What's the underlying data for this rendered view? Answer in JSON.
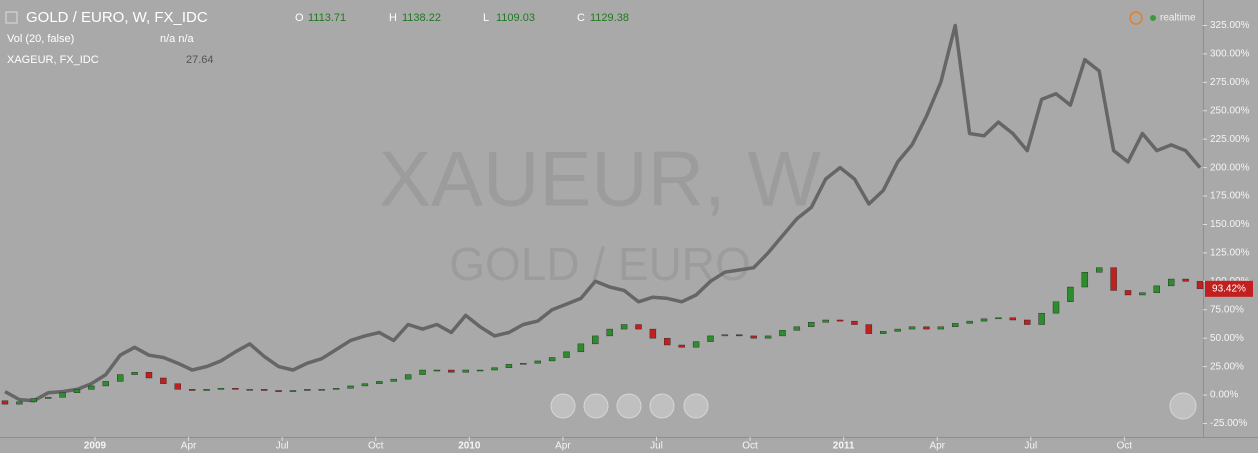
{
  "header": {
    "ohlc": [
      {
        "key": "O",
        "value": "1113.71"
      },
      {
        "key": "H",
        "value": "1138.22"
      },
      {
        "key": "L",
        "value": "1109.03"
      },
      {
        "key": "C",
        "value": "1129.38"
      }
    ],
    "volume_name": "Vol (20, false)",
    "volume_values": "n/a  n/a",
    "compare_value": "27.64",
    "status": "realtime",
    "watermark": "XAUEUR, W",
    "watermark_sub": "GOLD / EURO"
  },
  "chart_data": {
    "type": "candlestick",
    "x": [
      0,
      2,
      4,
      6,
      8,
      10,
      12,
      14,
      16,
      18,
      20,
      22,
      24,
      26,
      28,
      30,
      32,
      34,
      36,
      38,
      40,
      42,
      44,
      46,
      48,
      50,
      52,
      54,
      56,
      58,
      60,
      62,
      64,
      66,
      68,
      70,
      72,
      74,
      76,
      78,
      80,
      82,
      84,
      86,
      88,
      90,
      92,
      94,
      96,
      98,
      100,
      102,
      104,
      106,
      108,
      110,
      112,
      114,
      116,
      118,
      120,
      122,
      124,
      126,
      128,
      130,
      132,
      134,
      136,
      138,
      140,
      142,
      144,
      146,
      148,
      150,
      152,
      154,
      156,
      158,
      160,
      162,
      164,
      166
    ],
    "candles": {
      "name": "GOLD / EURO, W, FX_IDC",
      "up_color": "#2e8b2e",
      "down_color": "#c21f1f",
      "open": [
        -5,
        -8,
        -6,
        -3,
        -2,
        2,
        5,
        8,
        12,
        18,
        20,
        15,
        10,
        5,
        4,
        5,
        6,
        5,
        5,
        4,
        3,
        4,
        5,
        5,
        6,
        8,
        10,
        12,
        14,
        18,
        22,
        22,
        20,
        22,
        22,
        24,
        27,
        28,
        30,
        33,
        38,
        45,
        52,
        58,
        62,
        58,
        50,
        44,
        42,
        47,
        52,
        53,
        52,
        50,
        52,
        57,
        60,
        64,
        66,
        65,
        62,
        54,
        56,
        58,
        60,
        58,
        60,
        63,
        65,
        67,
        68,
        66,
        62,
        72,
        82,
        95,
        108,
        112,
        92,
        88,
        90,
        96,
        102,
        100
      ],
      "close": [
        -8,
        -6,
        -3,
        -2,
        2,
        5,
        8,
        12,
        18,
        20,
        15,
        10,
        5,
        4,
        5,
        6,
        5,
        5,
        4,
        3,
        4,
        5,
        5,
        6,
        8,
        10,
        12,
        14,
        18,
        22,
        22,
        20,
        22,
        22,
        24,
        27,
        28,
        30,
        33,
        38,
        45,
        52,
        58,
        62,
        58,
        50,
        44,
        42,
        47,
        52,
        53,
        52,
        50,
        52,
        57,
        60,
        64,
        66,
        65,
        62,
        54,
        56,
        58,
        60,
        58,
        60,
        63,
        65,
        67,
        68,
        66,
        62,
        72,
        82,
        95,
        108,
        112,
        92,
        88,
        90,
        96,
        102,
        100,
        93.42
      ],
      "last_label": "93.42%"
    },
    "series": [
      {
        "name": "XAGEUR, FX_IDC",
        "color": "#666666",
        "values": [
          3,
          -4,
          -5,
          2,
          3,
          5,
          10,
          18,
          35,
          42,
          35,
          33,
          28,
          22,
          25,
          30,
          38,
          45,
          34,
          25,
          22,
          28,
          32,
          40,
          48,
          52,
          55,
          48,
          62,
          58,
          62,
          55,
          70,
          60,
          52,
          55,
          62,
          65,
          75,
          80,
          85,
          100,
          95,
          92,
          82,
          86,
          85,
          82,
          88,
          100,
          108,
          110,
          112,
          125,
          140,
          155,
          165,
          190,
          200,
          190,
          168,
          180,
          205,
          220,
          245,
          275,
          325,
          230,
          228,
          240,
          230,
          215,
          260,
          265,
          255,
          295,
          285,
          215,
          205,
          230,
          215,
          220,
          215,
          200
        ]
      }
    ],
    "xlim": [
      0,
      166
    ],
    "xticks": [
      {
        "value": 12.5,
        "label": "2009"
      },
      {
        "value": 25.5,
        "label": "Apr"
      },
      {
        "value": 38.5,
        "label": "Jul"
      },
      {
        "value": 51.5,
        "label": "Oct"
      },
      {
        "value": 64.5,
        "label": "2010"
      },
      {
        "value": 77.5,
        "label": "Apr"
      },
      {
        "value": 90.5,
        "label": "Jul"
      },
      {
        "value": 103.5,
        "label": "Oct"
      },
      {
        "value": 116.5,
        "label": "2011"
      },
      {
        "value": 129.5,
        "label": "Apr"
      },
      {
        "value": 142.5,
        "label": "Jul"
      },
      {
        "value": 155.5,
        "label": "Oct"
      }
    ],
    "ylim": [
      -36.9,
      347.4
    ],
    "yticks": [
      {
        "value": -25,
        "label": "-25.00%"
      },
      {
        "value": 0,
        "label": "0.00%"
      },
      {
        "value": 25,
        "label": "25.00%"
      },
      {
        "value": 50,
        "label": "50.00%"
      },
      {
        "value": 75,
        "label": "75.00%"
      },
      {
        "value": 100,
        "label": "100.00%"
      },
      {
        "value": 125,
        "label": "125.00%"
      },
      {
        "value": 150,
        "label": "150.00%"
      },
      {
        "value": 175,
        "label": "175.00%"
      },
      {
        "value": 200,
        "label": "200.00%"
      },
      {
        "value": 225,
        "label": "225.00%"
      },
      {
        "value": 250,
        "label": "250.00%"
      },
      {
        "value": 275,
        "label": "275.00%"
      },
      {
        "value": 300,
        "label": "300.00%"
      },
      {
        "value": 325,
        "label": "325.00%"
      }
    ]
  }
}
